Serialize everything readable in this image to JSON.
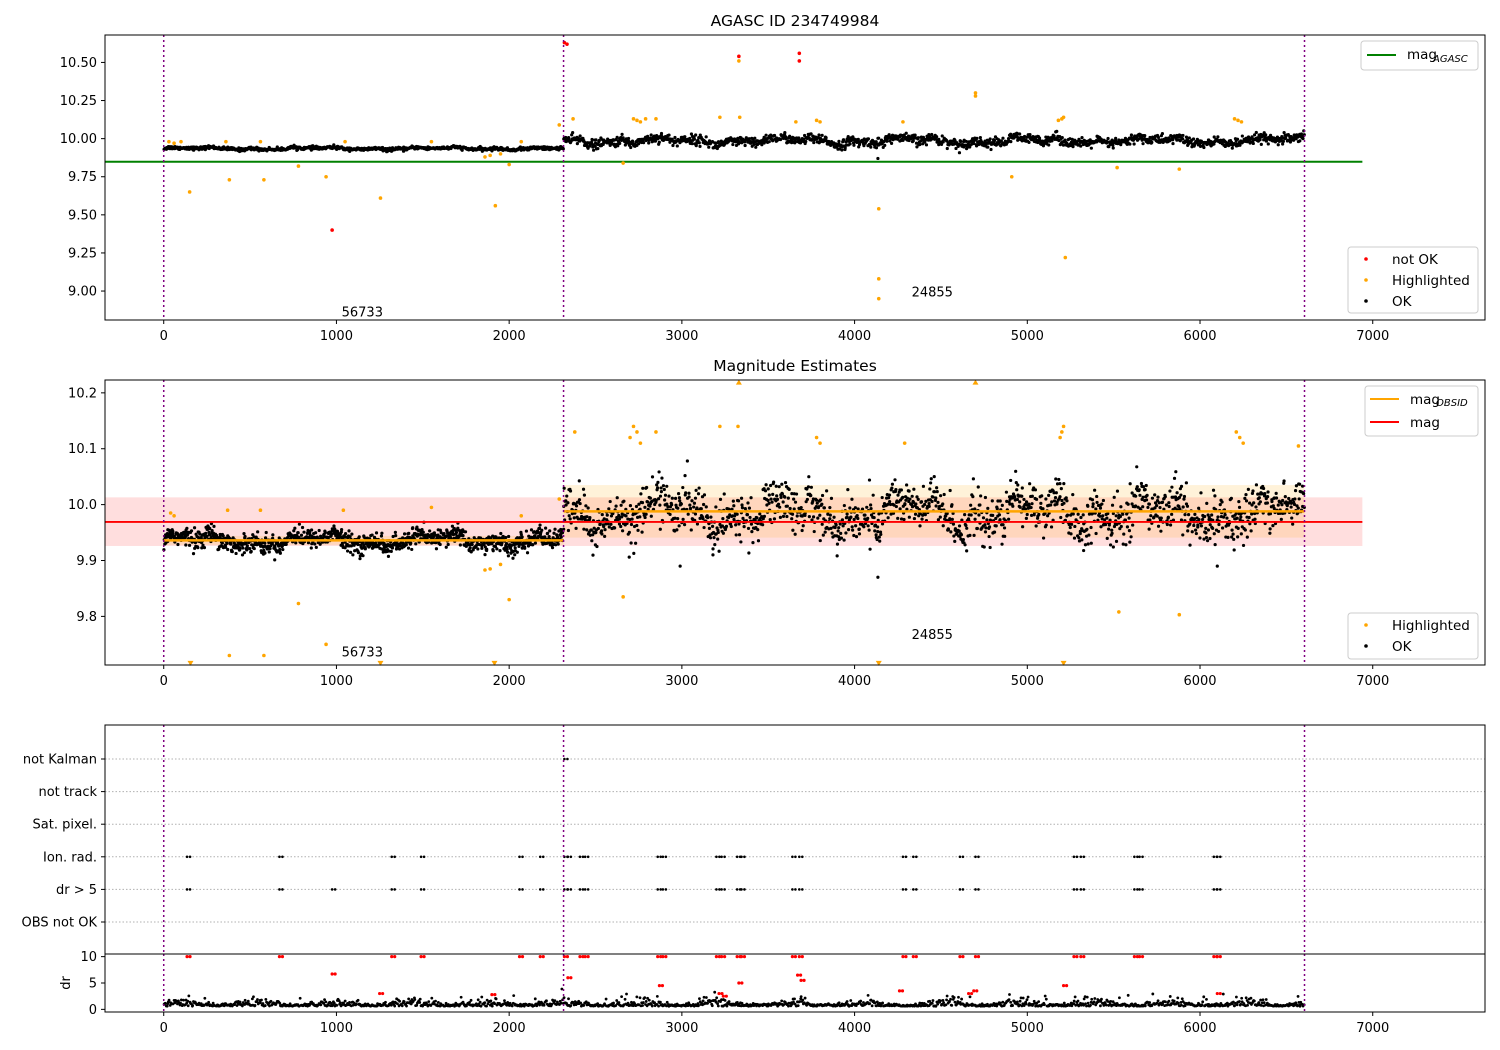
{
  "chart_data": [
    {
      "type": "scatter",
      "title": "AGASC ID 234749984",
      "xlim": [
        -340,
        7650
      ],
      "ylim": [
        8.81,
        10.68
      ],
      "xticks": [
        0,
        1000,
        2000,
        3000,
        4000,
        5000,
        6000,
        7000
      ],
      "yticks": [
        9.0,
        9.25,
        9.5,
        9.75,
        10.0,
        10.25,
        10.5
      ],
      "ytick_labels": [
        "9.00",
        "9.25",
        "9.50",
        "9.75",
        "10.00",
        "10.25",
        "10.50"
      ],
      "vlines": [
        0,
        2315,
        6605
      ],
      "hline": {
        "name": "mag_AGASC",
        "label_main": "mag",
        "label_sub": "AGASC",
        "y": 9.848,
        "x_range": [
          -340,
          6940
        ],
        "color": "#008000"
      },
      "annotations": [
        {
          "text": "56733",
          "x": 1030,
          "y": 8.86
        },
        {
          "text": "24855",
          "x": 4330,
          "y": 8.99
        }
      ],
      "legend_top": [
        {
          "label": "mag",
          "sub": "AGASC",
          "color": "#008000"
        }
      ],
      "legend_bottom": [
        {
          "label": "not OK",
          "color": "#ff0000"
        },
        {
          "label": "Highlighted",
          "color": "#ffa500"
        },
        {
          "label": "OK",
          "color": "#000000"
        }
      ],
      "series": [
        {
          "name": "OK",
          "color": "#000000",
          "segments": [
            {
              "x0": 0,
              "x1": 2315,
              "mean": 9.935,
              "amp": 0.012,
              "n": 700
            },
            {
              "x0": 2315,
              "x1": 6605,
              "mean": 9.985,
              "amp": 0.035,
              "n": 1400
            }
          ],
          "extra_points": [
            [
              4135,
              9.87
            ]
          ]
        },
        {
          "name": "not OK",
          "color": "#ff0000",
          "points": [
            [
              975,
              9.4
            ],
            [
              2320,
              10.63
            ],
            [
              2335,
              10.62
            ],
            [
              3330,
              10.54
            ],
            [
              3680,
              10.56
            ],
            [
              3680,
              10.51
            ]
          ]
        },
        {
          "name": "Highlighted",
          "color": "#ffa500",
          "points": [
            [
              30,
              9.98
            ],
            [
              60,
              9.97
            ],
            [
              100,
              9.98
            ],
            [
              150,
              9.65
            ],
            [
              360,
              9.98
            ],
            [
              380,
              9.73
            ],
            [
              560,
              9.98
            ],
            [
              580,
              9.73
            ],
            [
              780,
              9.82
            ],
            [
              940,
              9.75
            ],
            [
              1050,
              9.98
            ],
            [
              1255,
              9.61
            ],
            [
              1550,
              9.98
            ],
            [
              1860,
              9.88
            ],
            [
              1890,
              9.89
            ],
            [
              1920,
              9.56
            ],
            [
              1950,
              9.9
            ],
            [
              2000,
              9.83
            ],
            [
              2070,
              9.98
            ],
            [
              2290,
              10.09
            ],
            [
              2370,
              10.13
            ],
            [
              2660,
              9.84
            ],
            [
              2720,
              10.13
            ],
            [
              2740,
              10.12
            ],
            [
              2760,
              10.11
            ],
            [
              2790,
              10.13
            ],
            [
              2850,
              10.13
            ],
            [
              3220,
              10.14
            ],
            [
              3330,
              10.51
            ],
            [
              3335,
              10.14
            ],
            [
              3660,
              10.11
            ],
            [
              3780,
              10.12
            ],
            [
              3800,
              10.11
            ],
            [
              4140,
              9.54
            ],
            [
              4140,
              9.08
            ],
            [
              4140,
              8.95
            ],
            [
              4280,
              10.11
            ],
            [
              4700,
              10.3
            ],
            [
              4700,
              10.28
            ],
            [
              4910,
              9.75
            ],
            [
              5180,
              10.12
            ],
            [
              5200,
              10.13
            ],
            [
              5220,
              9.22
            ],
            [
              5210,
              10.14
            ],
            [
              5520,
              9.81
            ],
            [
              5880,
              9.8
            ],
            [
              6200,
              10.13
            ],
            [
              6220,
              10.12
            ],
            [
              6240,
              10.11
            ]
          ]
        }
      ]
    },
    {
      "type": "scatter",
      "title": "Magnitude Estimates",
      "xlim": [
        -340,
        7650
      ],
      "ylim": [
        9.713,
        10.223
      ],
      "xticks": [
        0,
        1000,
        2000,
        3000,
        4000,
        5000,
        6000,
        7000
      ],
      "yticks": [
        9.8,
        9.9,
        10.0,
        10.1,
        10.2
      ],
      "ytick_labels": [
        "9.8",
        "9.9",
        "10.0",
        "10.1",
        "10.2"
      ],
      "vlines": [
        0,
        2315,
        6605
      ],
      "mag": {
        "y": 9.969,
        "band": [
          9.926,
          10.013
        ],
        "x_range": [
          -340,
          6940
        ],
        "color": "#ff0000"
      },
      "mag_obsid": [
        {
          "x0": 0,
          "x1": 2315,
          "y": 9.936,
          "band": [
            9.928,
            9.944
          ]
        },
        {
          "x0": 2315,
          "x1": 6605,
          "y": 9.988,
          "band": [
            9.941,
            10.035
          ]
        }
      ],
      "annotations": [
        {
          "text": "56733",
          "x": 1030,
          "y": 9.735
        },
        {
          "text": "24855",
          "x": 4330,
          "y": 9.767
        }
      ],
      "legend_top": [
        {
          "label": "mag",
          "sub": "OBSID",
          "color": "#ffa500"
        },
        {
          "label": "mag",
          "sub": "",
          "color": "#ff0000"
        }
      ],
      "legend_bottom": [
        {
          "label": "Highlighted",
          "color": "#ffa500"
        },
        {
          "label": "OK",
          "color": "#000000"
        }
      ],
      "series": [
        {
          "name": "OK",
          "color": "#000000",
          "segments": [
            {
              "x0": 0,
              "x1": 2315,
              "mean": 9.936,
              "amp": 0.018,
              "n": 1100
            },
            {
              "x0": 2315,
              "x1": 6605,
              "mean": 9.985,
              "amp": 0.045,
              "n": 1500
            }
          ],
          "extra_points": [
            [
              4135,
              9.87
            ],
            [
              6100,
              9.89
            ],
            [
              3180,
              9.91
            ],
            [
              2990,
              9.89
            ]
          ]
        },
        {
          "name": "Highlighted",
          "color": "#ffa500",
          "points": [
            [
              40,
              9.985
            ],
            [
              60,
              9.98
            ],
            [
              370,
              9.99
            ],
            [
              380,
              9.73
            ],
            [
              560,
              9.99
            ],
            [
              580,
              9.73
            ],
            [
              780,
              9.823
            ],
            [
              940,
              9.75
            ],
            [
              1040,
              9.99
            ],
            [
              1550,
              9.995
            ],
            [
              1860,
              9.883
            ],
            [
              1890,
              9.885
            ],
            [
              1950,
              9.893
            ],
            [
              2000,
              9.83
            ],
            [
              2070,
              9.98
            ],
            [
              2290,
              10.01
            ],
            [
              2380,
              10.13
            ],
            [
              2660,
              9.835
            ],
            [
              2700,
              10.12
            ],
            [
              2720,
              10.14
            ],
            [
              2740,
              10.13
            ],
            [
              2760,
              10.11
            ],
            [
              2850,
              10.13
            ],
            [
              3220,
              10.14
            ],
            [
              3325,
              10.14
            ],
            [
              3780,
              10.12
            ],
            [
              3800,
              10.11
            ],
            [
              4290,
              10.11
            ],
            [
              5190,
              10.12
            ],
            [
              5200,
              10.13
            ],
            [
              5210,
              10.14
            ],
            [
              5530,
              9.808
            ],
            [
              5880,
              9.803
            ],
            [
              6210,
              10.13
            ],
            [
              6230,
              10.12
            ],
            [
              6250,
              10.11
            ],
            [
              6570,
              10.105
            ]
          ]
        },
        {
          "name": "Highlighted (out of range)",
          "color": "#ffa500",
          "marker": "triangle-down",
          "points": [
            [
              155,
              9.715
            ],
            [
              1255,
              9.715
            ],
            [
              1915,
              9.715
            ],
            [
              4140,
              9.715
            ],
            [
              5210,
              9.715
            ]
          ]
        },
        {
          "name": "Highlighted (out of range up)",
          "color": "#ffa500",
          "marker": "triangle-up",
          "points": [
            [
              3330,
              10.22
            ],
            [
              4700,
              10.22
            ]
          ]
        }
      ]
    },
    {
      "type": "scatter",
      "title": "",
      "xlim": [
        -340,
        7650
      ],
      "categories": [
        "not Kalman",
        "not track",
        "Sat. pixel.",
        "Ion. rad.",
        "dr > 5",
        "OBS not OK"
      ],
      "vlines": [
        0,
        2315,
        6605
      ],
      "flag_points": {
        "Ion. rad.": [
          135,
          670,
          1320,
          1490,
          2060,
          2180,
          2320,
          2340,
          2410,
          2440,
          2860,
          2890,
          3200,
          3230,
          3320,
          3345,
          3640,
          3680,
          4280,
          4340,
          4610,
          4700,
          5270,
          5310,
          5620,
          5650,
          6080,
          6100
        ],
        "dr > 5": [
          135,
          670,
          975,
          1320,
          1490,
          2060,
          2180,
          2320,
          2340,
          2410,
          2440,
          2860,
          2890,
          3200,
          3230,
          3320,
          3345,
          3640,
          3680,
          4280,
          4340,
          4610,
          4700,
          5270,
          5310,
          5620,
          5650,
          6080,
          6100
        ],
        "not Kalman": [
          2320
        ]
      }
    },
    {
      "type": "scatter",
      "title": "",
      "ylabel": "dr",
      "xlim": [
        -340,
        7650
      ],
      "ylim": [
        -0.5,
        10.5
      ],
      "xticks": [
        0,
        1000,
        2000,
        3000,
        4000,
        5000,
        6000,
        7000
      ],
      "yticks": [
        0,
        5,
        10
      ],
      "ytick_labels": [
        "0",
        "5",
        "10"
      ],
      "vlines": [
        0,
        2315,
        6605
      ],
      "series": [
        {
          "name": "dr OK",
          "color": "#000000",
          "segments": [
            {
              "x0": 0,
              "x1": 6605,
              "mean": 0.6,
              "amp": 0.5,
              "n": 1500
            }
          ]
        },
        {
          "name": "dr not OK",
          "color": "#ff0000",
          "points": [
            [
              135,
              10
            ],
            [
              670,
              10
            ],
            [
              975,
              6.7
            ],
            [
              1250,
              3.0
            ],
            [
              1320,
              10
            ],
            [
              1490,
              10
            ],
            [
              1900,
              2.8
            ],
            [
              2060,
              10
            ],
            [
              2180,
              10
            ],
            [
              2320,
              10
            ],
            [
              2340,
              6.0
            ],
            [
              2410,
              10
            ],
            [
              2440,
              10
            ],
            [
              2860,
              10
            ],
            [
              2870,
              4.5
            ],
            [
              2890,
              10
            ],
            [
              3200,
              10
            ],
            [
              3215,
              3.0
            ],
            [
              3230,
              10
            ],
            [
              3240,
              2.5
            ],
            [
              3320,
              10
            ],
            [
              3330,
              5.0
            ],
            [
              3345,
              10
            ],
            [
              3640,
              10
            ],
            [
              3680,
              10
            ],
            [
              3670,
              6.5
            ],
            [
              3690,
              5.5
            ],
            [
              4260,
              3.5
            ],
            [
              4280,
              10
            ],
            [
              4340,
              10
            ],
            [
              4610,
              10
            ],
            [
              4660,
              3.0
            ],
            [
              4700,
              10
            ],
            [
              4690,
              3.5
            ],
            [
              5210,
              4.5
            ],
            [
              5270,
              10
            ],
            [
              5310,
              10
            ],
            [
              5620,
              10
            ],
            [
              5650,
              10
            ],
            [
              6080,
              10
            ],
            [
              6100,
              10
            ],
            [
              6100,
              3.0
            ]
          ]
        }
      ]
    }
  ]
}
